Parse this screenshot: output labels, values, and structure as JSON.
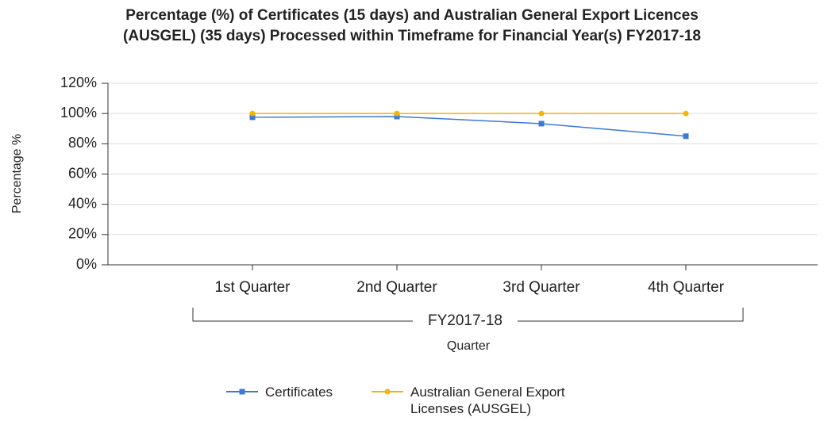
{
  "chart_data": {
    "type": "line",
    "title": [
      "Percentage (%) of Certificates (15 days) and Australian General Export Licences",
      "(AUSGEL) (35 days) Processed within Timeframe for Financial Year(s) FY2017-18"
    ],
    "categories": [
      "1st Quarter",
      "2nd Quarter",
      "3rd Quarter",
      "4th Quarter"
    ],
    "category_group": "FY2017-18",
    "x_label": "Quarter",
    "y_label": "Percentage %",
    "ylim": [
      0,
      120
    ],
    "yticks": [
      {
        "value": 0,
        "label": "0%"
      },
      {
        "value": 20,
        "label": "20%"
      },
      {
        "value": 40,
        "label": "40%"
      },
      {
        "value": 60,
        "label": "60%"
      },
      {
        "value": 80,
        "label": "80%"
      },
      {
        "value": 100,
        "label": "100%"
      },
      {
        "value": 120,
        "label": "120%"
      }
    ],
    "grid": true,
    "legend": "bottom",
    "series": [
      {
        "name": "Certificates",
        "color": "#3c78d8",
        "values": [
          97.5,
          98,
          93.3,
          85
        ]
      },
      {
        "name": "Australian General Export Licenses (AUSGEL)",
        "color": "#f4b400",
        "values": [
          100,
          100,
          100,
          100
        ]
      }
    ]
  }
}
